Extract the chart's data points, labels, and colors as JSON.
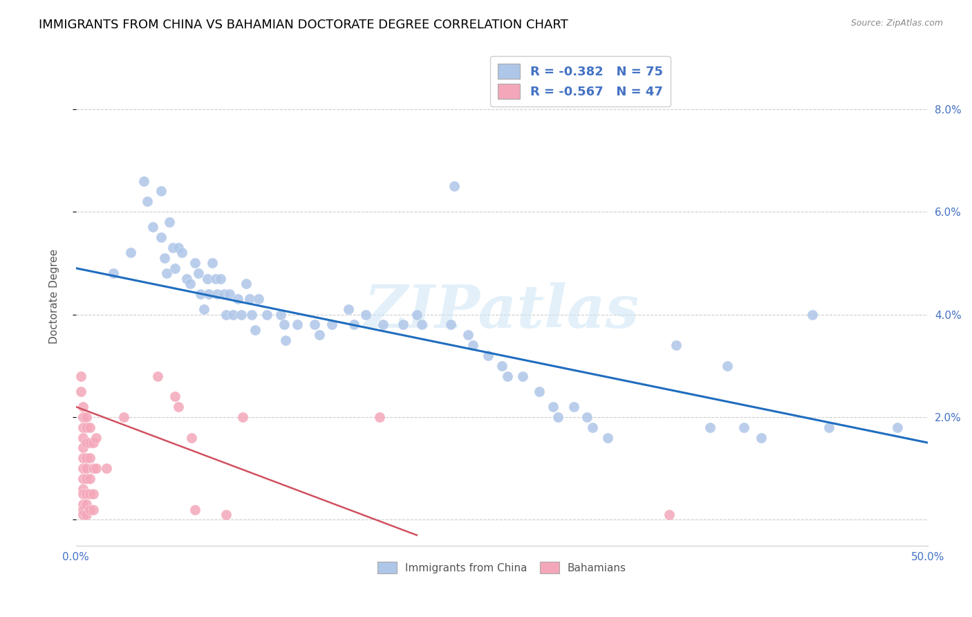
{
  "title": "IMMIGRANTS FROM CHINA VS BAHAMIAN DOCTORATE DEGREE CORRELATION CHART",
  "source": "Source: ZipAtlas.com",
  "ylabel": "Doctorate Degree",
  "xlim": [
    0,
    0.5
  ],
  "ylim": [
    -0.005,
    0.092
  ],
  "xticks": [
    0.0,
    0.1,
    0.2,
    0.3,
    0.4,
    0.5
  ],
  "yticks": [
    0.0,
    0.02,
    0.04,
    0.06,
    0.08
  ],
  "ytick_labels_right": [
    "",
    "2.0%",
    "4.0%",
    "6.0%",
    "8.0%"
  ],
  "xtick_labels": [
    "0.0%",
    "",
    "",
    "",
    "",
    "50.0%"
  ],
  "legend_entries": [
    {
      "label": "R = -0.382   N = 75",
      "color": "#aec6e8"
    },
    {
      "label": "R = -0.567   N = 47",
      "color": "#f4a7b9"
    }
  ],
  "legend_labels_bottom": [
    "Immigrants from China",
    "Bahamians"
  ],
  "blue_scatter_color": "#aec6e8",
  "pink_scatter_color": "#f4a7b9",
  "blue_line_color": "#1f6dbf",
  "pink_line_color": "#d05060",
  "watermark": "ZIPatlas",
  "axis_color": "#4472c4",
  "blue_points": [
    [
      0.022,
      0.048
    ],
    [
      0.032,
      0.052
    ],
    [
      0.04,
      0.066
    ],
    [
      0.042,
      0.062
    ],
    [
      0.045,
      0.057
    ],
    [
      0.05,
      0.064
    ],
    [
      0.05,
      0.055
    ],
    [
      0.052,
      0.051
    ],
    [
      0.053,
      0.048
    ],
    [
      0.055,
      0.058
    ],
    [
      0.057,
      0.053
    ],
    [
      0.058,
      0.049
    ],
    [
      0.06,
      0.053
    ],
    [
      0.062,
      0.052
    ],
    [
      0.065,
      0.047
    ],
    [
      0.067,
      0.046
    ],
    [
      0.07,
      0.05
    ],
    [
      0.072,
      0.048
    ],
    [
      0.073,
      0.044
    ],
    [
      0.075,
      0.041
    ],
    [
      0.077,
      0.047
    ],
    [
      0.078,
      0.044
    ],
    [
      0.08,
      0.05
    ],
    [
      0.082,
      0.047
    ],
    [
      0.083,
      0.044
    ],
    [
      0.085,
      0.047
    ],
    [
      0.087,
      0.044
    ],
    [
      0.088,
      0.04
    ],
    [
      0.09,
      0.044
    ],
    [
      0.092,
      0.04
    ],
    [
      0.095,
      0.043
    ],
    [
      0.097,
      0.04
    ],
    [
      0.1,
      0.046
    ],
    [
      0.102,
      0.043
    ],
    [
      0.103,
      0.04
    ],
    [
      0.105,
      0.037
    ],
    [
      0.107,
      0.043
    ],
    [
      0.112,
      0.04
    ],
    [
      0.12,
      0.04
    ],
    [
      0.122,
      0.038
    ],
    [
      0.123,
      0.035
    ],
    [
      0.13,
      0.038
    ],
    [
      0.14,
      0.038
    ],
    [
      0.143,
      0.036
    ],
    [
      0.15,
      0.038
    ],
    [
      0.16,
      0.041
    ],
    [
      0.163,
      0.038
    ],
    [
      0.17,
      0.04
    ],
    [
      0.18,
      0.038
    ],
    [
      0.192,
      0.038
    ],
    [
      0.2,
      0.04
    ],
    [
      0.203,
      0.038
    ],
    [
      0.22,
      0.038
    ],
    [
      0.23,
      0.036
    ],
    [
      0.233,
      0.034
    ],
    [
      0.242,
      0.032
    ],
    [
      0.25,
      0.03
    ],
    [
      0.253,
      0.028
    ],
    [
      0.262,
      0.028
    ],
    [
      0.272,
      0.025
    ],
    [
      0.28,
      0.022
    ],
    [
      0.283,
      0.02
    ],
    [
      0.292,
      0.022
    ],
    [
      0.3,
      0.02
    ],
    [
      0.303,
      0.018
    ],
    [
      0.312,
      0.016
    ],
    [
      0.352,
      0.034
    ],
    [
      0.372,
      0.018
    ],
    [
      0.382,
      0.03
    ],
    [
      0.392,
      0.018
    ],
    [
      0.402,
      0.016
    ],
    [
      0.432,
      0.04
    ],
    [
      0.442,
      0.018
    ],
    [
      0.482,
      0.018
    ],
    [
      0.222,
      0.065
    ]
  ],
  "pink_points": [
    [
      0.003,
      0.028
    ],
    [
      0.003,
      0.025
    ],
    [
      0.004,
      0.022
    ],
    [
      0.004,
      0.02
    ],
    [
      0.004,
      0.018
    ],
    [
      0.004,
      0.016
    ],
    [
      0.004,
      0.014
    ],
    [
      0.004,
      0.012
    ],
    [
      0.004,
      0.01
    ],
    [
      0.004,
      0.008
    ],
    [
      0.004,
      0.006
    ],
    [
      0.004,
      0.005
    ],
    [
      0.004,
      0.003
    ],
    [
      0.004,
      0.002
    ],
    [
      0.004,
      0.001
    ],
    [
      0.006,
      0.02
    ],
    [
      0.006,
      0.018
    ],
    [
      0.006,
      0.015
    ],
    [
      0.006,
      0.012
    ],
    [
      0.006,
      0.01
    ],
    [
      0.006,
      0.008
    ],
    [
      0.006,
      0.005
    ],
    [
      0.006,
      0.003
    ],
    [
      0.006,
      0.001
    ],
    [
      0.008,
      0.018
    ],
    [
      0.008,
      0.015
    ],
    [
      0.008,
      0.012
    ],
    [
      0.008,
      0.008
    ],
    [
      0.008,
      0.005
    ],
    [
      0.008,
      0.002
    ],
    [
      0.01,
      0.015
    ],
    [
      0.01,
      0.01
    ],
    [
      0.01,
      0.005
    ],
    [
      0.01,
      0.002
    ],
    [
      0.012,
      0.016
    ],
    [
      0.012,
      0.01
    ],
    [
      0.018,
      0.01
    ],
    [
      0.028,
      0.02
    ],
    [
      0.048,
      0.028
    ],
    [
      0.058,
      0.024
    ],
    [
      0.06,
      0.022
    ],
    [
      0.068,
      0.016
    ],
    [
      0.07,
      0.002
    ],
    [
      0.088,
      0.001
    ],
    [
      0.098,
      0.02
    ],
    [
      0.178,
      0.02
    ],
    [
      0.348,
      0.001
    ]
  ],
  "blue_line_x": [
    0.0,
    0.5
  ],
  "blue_line_y": [
    0.049,
    0.015
  ],
  "pink_line_x": [
    0.0,
    0.2
  ],
  "pink_line_y": [
    0.022,
    -0.003
  ]
}
